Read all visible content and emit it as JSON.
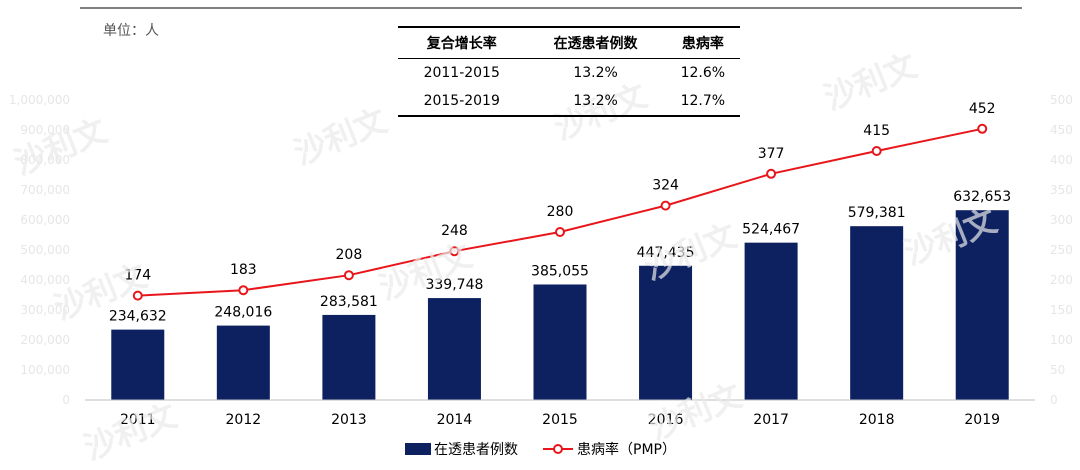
{
  "unit_label": "单位：人",
  "cagr_table": {
    "headers": [
      "复合增长率",
      "在透患者例数",
      "患病率"
    ],
    "rows": [
      [
        "2011-2015",
        "13.2%",
        "12.6%"
      ],
      [
        "2015-2019",
        "13.2%",
        "12.7%"
      ]
    ]
  },
  "chart_data": {
    "type": "bar",
    "categories": [
      "2011",
      "2012",
      "2013",
      "2014",
      "2015",
      "2016",
      "2017",
      "2018",
      "2019"
    ],
    "series": [
      {
        "name": "在透患者例数",
        "type": "bar",
        "axis": "left",
        "values": [
          234632,
          248016,
          283581,
          339748,
          385055,
          447435,
          524467,
          579381,
          632653
        ],
        "labels": [
          "234,632",
          "248,016",
          "283,581",
          "339,748",
          "385,055",
          "447,435",
          "524,467",
          "579,381",
          "632,653"
        ],
        "color": "#0d2161"
      },
      {
        "name": "患病率（PMP）",
        "type": "line",
        "axis": "right",
        "values": [
          174,
          183,
          208,
          248,
          280,
          324,
          377,
          415,
          452
        ],
        "labels": [
          "174",
          "183",
          "208",
          "248",
          "280",
          "324",
          "377",
          "415",
          "452"
        ],
        "color": "#e8161b"
      }
    ],
    "left_axis": {
      "ylim": [
        0,
        1000000
      ],
      "ticks": [
        "0",
        "100,000",
        "200,000",
        "300,000",
        "400,000",
        "500,000",
        "600,000",
        "700,000",
        "800,000",
        "900,000",
        "1,000,000"
      ]
    },
    "right_axis": {
      "ylim": [
        0,
        500
      ],
      "ticks": [
        "0",
        "50",
        "100",
        "150",
        "200",
        "250",
        "300",
        "350",
        "400",
        "450",
        "500"
      ]
    },
    "legend_position": "bottom",
    "grid": false
  },
  "watermark_text": "沙利文"
}
